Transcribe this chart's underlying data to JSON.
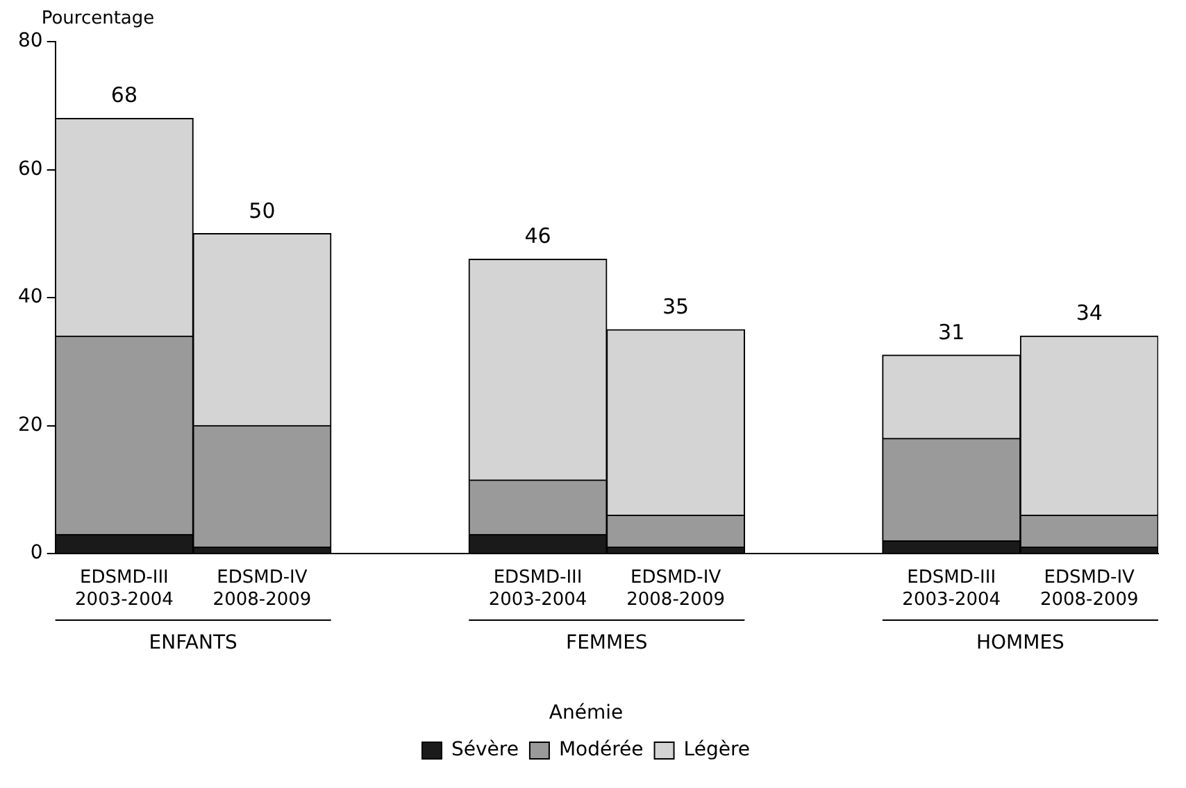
{
  "chart_data": {
    "type": "bar",
    "stacked": true,
    "ylabel": "Pourcentage",
    "legend_title": "Anémie",
    "legend": "bottom",
    "grid": false,
    "categories": [
      "EDSMD-III\n2003-2004",
      "EDSMD-IV\n2008-2009",
      null,
      "EDSMD-III\n2003-2004",
      "EDSMD-IV\n2008-2009",
      null,
      "EDSMD-III\n2003-2004",
      "EDSMD-IV\n2008-2009"
    ],
    "series": [
      {
        "name": "Sévère",
        "color": "#1a1a1a",
        "values": [
          3,
          1,
          null,
          3,
          1,
          null,
          2,
          1
        ]
      },
      {
        "name": "Modérée",
        "color": "#9a9a9a",
        "values": [
          31,
          19,
          null,
          8.5,
          5,
          null,
          16,
          5
        ]
      },
      {
        "name": "Légère",
        "color": "#d4d4d4",
        "values": [
          34,
          30,
          null,
          34.5,
          29,
          null,
          13,
          28
        ]
      }
    ],
    "totals": [
      "68",
      "50",
      null,
      "46",
      "35",
      null,
      "31",
      "34"
    ],
    "annotations": [
      "ENFANTS",
      "FEMMES",
      "HOMMES"
    ],
    "ylim": [
      0,
      80
    ],
    "yticks": [
      0,
      20,
      40,
      60,
      80
    ]
  }
}
